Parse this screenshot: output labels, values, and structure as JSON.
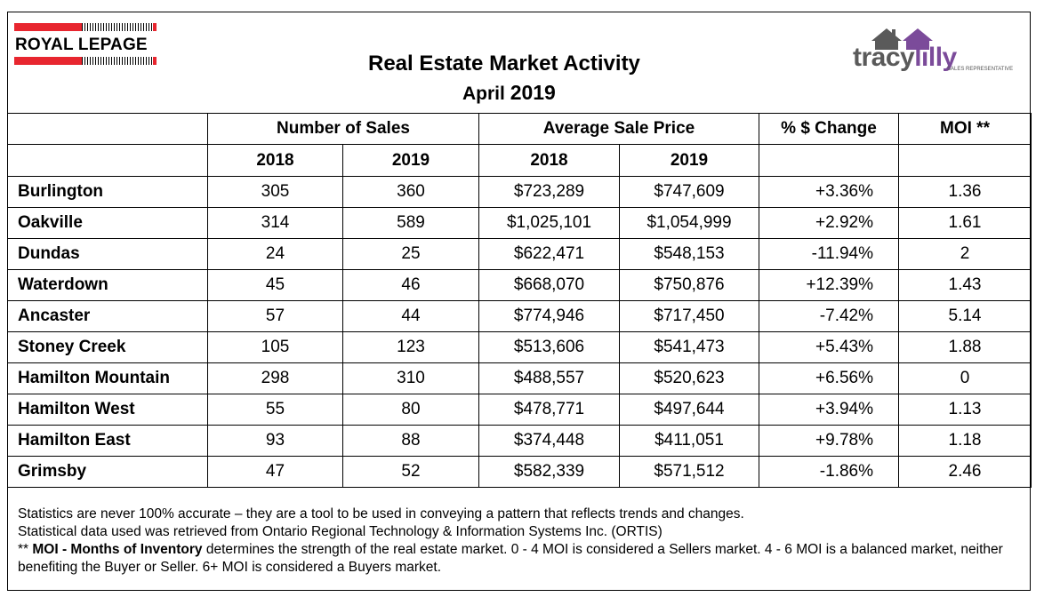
{
  "header": {
    "logo_left": "ROYAL LEPAGE",
    "title": "Real Estate Market Activity",
    "subtitle_month": "April",
    "subtitle_year": "2019",
    "logo_right_part1": "tracy",
    "logo_right_part2": "lilly",
    "logo_right_tagline": "SALES REPRESENTATIVE"
  },
  "table": {
    "group_headers": {
      "sales": "Number of Sales",
      "price": "Average Sale Price",
      "change": "% $ Change",
      "moi": "MOI **"
    },
    "year_headers": [
      "2018",
      "2019",
      "2018",
      "2019"
    ],
    "rows": [
      {
        "town": "Burlington",
        "sales_2018": "305",
        "sales_2019": "360",
        "price_2018": "$723,289",
        "price_2019": "$747,609",
        "change": "+3.36%",
        "moi": "1.36"
      },
      {
        "town": "Oakville",
        "sales_2018": "314",
        "sales_2019": "589",
        "price_2018": "$1,025,101",
        "price_2019": "$1,054,999",
        "change": "+2.92%",
        "moi": "1.61"
      },
      {
        "town": "Dundas",
        "sales_2018": "24",
        "sales_2019": "25",
        "price_2018": "$622,471",
        "price_2019": "$548,153",
        "change": "-11.94%",
        "moi": "2"
      },
      {
        "town": "Waterdown",
        "sales_2018": "45",
        "sales_2019": "46",
        "price_2018": "$668,070",
        "price_2019": "$750,876",
        "change": "+12.39%",
        "moi": "1.43"
      },
      {
        "town": "Ancaster",
        "sales_2018": "57",
        "sales_2019": "44",
        "price_2018": "$774,946",
        "price_2019": "$717,450",
        "change": "-7.42%",
        "moi": "5.14"
      },
      {
        "town": "Stoney Creek",
        "sales_2018": "105",
        "sales_2019": "123",
        "price_2018": "$513,606",
        "price_2019": "$541,473",
        "change": "+5.43%",
        "moi": "1.88"
      },
      {
        "town": "Hamilton Mountain",
        "sales_2018": "298",
        "sales_2019": "310",
        "price_2018": "$488,557",
        "price_2019": "$520,623",
        "change": "+6.56%",
        "moi": "0"
      },
      {
        "town": "Hamilton West",
        "sales_2018": "55",
        "sales_2019": "80",
        "price_2018": "$478,771",
        "price_2019": "$497,644",
        "change": "+3.94%",
        "moi": "1.13"
      },
      {
        "town": "Hamilton East",
        "sales_2018": "93",
        "sales_2019": "88",
        "price_2018": "$374,448",
        "price_2019": "$411,051",
        "change": "+9.78%",
        "moi": "1.18"
      },
      {
        "town": "Grimsby",
        "sales_2018": "47",
        "sales_2019": "52",
        "price_2018": "$582,339",
        "price_2019": "$571,512",
        "change": "-1.86%",
        "moi": "2.46"
      }
    ]
  },
  "footer": {
    "line1": "Statistics are never 100% accurate – they are a tool to be used in conveying a pattern that reflects trends and changes.",
    "line2": "Statistical data used was retrieved from Ontario Regional Technology & Information Systems Inc. (ORTIS)",
    "line3_prefix": "** ",
    "line3_bold": "MOI - Months of Inventory",
    "line3_rest": " determines the strength of the real estate market. 0 - 4 MOI is considered a Sellers market. 4 - 6 MOI is a balanced market, neither benefiting the Buyer or Seller. 6+ MOI is considered a Buyers market."
  }
}
